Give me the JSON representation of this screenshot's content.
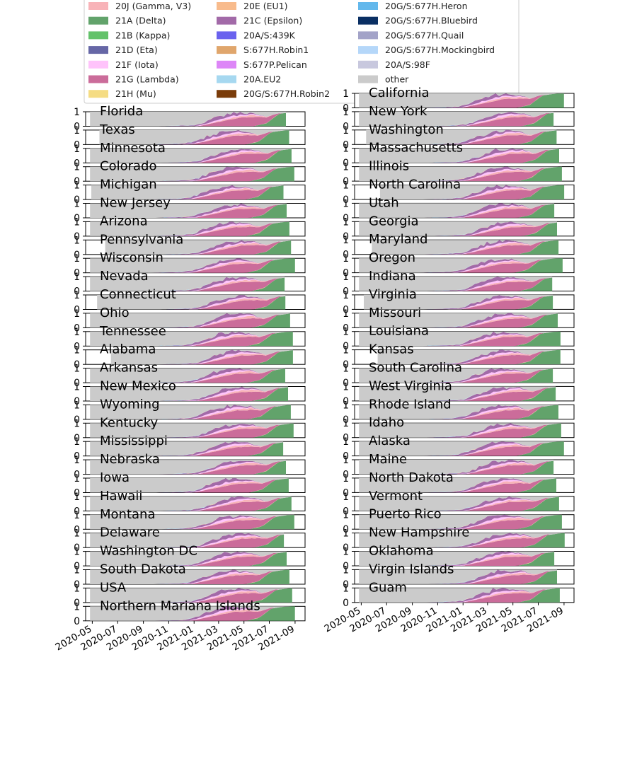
{
  "chart_data": {
    "type": "area",
    "stacked": true,
    "normalized": true,
    "ylim": [
      0,
      1
    ],
    "yticks": [
      "0",
      "1"
    ],
    "xlim": [
      "2020-04-15",
      "2021-09-25"
    ],
    "xticks": [
      "2020-05",
      "2020-07",
      "2020-09",
      "2020-11",
      "2021-01",
      "2021-03",
      "2021-05",
      "2021-07",
      "2021-09"
    ],
    "legend": {
      "placement": "top",
      "entries": [
        {
          "name": "20J (Gamma, V3)",
          "color": "#f8b3b8"
        },
        {
          "name": "21A (Delta)",
          "color": "#62a36b"
        },
        {
          "name": "21B (Kappa)",
          "color": "#63c26a"
        },
        {
          "name": "21D (Eta)",
          "color": "#6667a6"
        },
        {
          "name": "21F (Iota)",
          "color": "#ffc3fb"
        },
        {
          "name": "21G (Lambda)",
          "color": "#cb6c9a"
        },
        {
          "name": "21H (Mu)",
          "color": "#f5dc83"
        },
        {
          "name": "20E (EU1)",
          "color": "#f8bb8c"
        },
        {
          "name": "21C (Epsilon)",
          "color": "#a26aa8"
        },
        {
          "name": "20A/S:439K",
          "color": "#6a62ee"
        },
        {
          "name": "S:677H.Robin1",
          "color": "#e0a66c"
        },
        {
          "name": "S:677P.Pelican",
          "color": "#dd86f7"
        },
        {
          "name": "20A.EU2",
          "color": "#a6d8f0"
        },
        {
          "name": "20G/S:677H.Robin2",
          "color": "#7a3c0a"
        },
        {
          "name": "20G/S:677H.Heron",
          "color": "#63b8ec"
        },
        {
          "name": "20G/S:677H.Bluebird",
          "color": "#0a2f63"
        },
        {
          "name": "20G/S:677H.Quail",
          "color": "#a3a3c8"
        },
        {
          "name": "20G/S:677H.Mockingbird",
          "color": "#b5d7f9"
        },
        {
          "name": "20A/S:98F",
          "color": "#c8c8de"
        },
        {
          "name": "other",
          "color": "#cbcbcb"
        }
      ]
    },
    "left_panels": [
      "Florida",
      "Texas",
      "Minnesota",
      "Colorado",
      "Michigan",
      "New Jersey",
      "Arizona",
      "Pennsylvania",
      "Wisconsin",
      "Nevada",
      "Connecticut",
      "Ohio",
      "Tennessee",
      "Alabama",
      "Arkansas",
      "New Mexico",
      "Wyoming",
      "Kentucky",
      "Mississippi",
      "Nebraska",
      "Iowa",
      "Hawaii",
      "Montana",
      "Delaware",
      "Washington DC",
      "South Dakota",
      "USA",
      "Northern Mariana Islands"
    ],
    "right_panels": [
      "California",
      "New York",
      "Washington",
      "Massachusetts",
      "Illinois",
      "North Carolina",
      "Utah",
      "Georgia",
      "Maryland",
      "Oregon",
      "Indiana",
      "Virginia",
      "Missouri",
      "Louisiana",
      "Kansas",
      "South Carolina",
      "West Virginia",
      "Rhode Island",
      "Idaho",
      "Alaska",
      "Maine",
      "North Dakota",
      "Vermont",
      "Puerto Rico",
      "New Hampshire",
      "Oklahoma",
      "Virgin Islands",
      "Guam"
    ],
    "series_order": [
      "other",
      "20A.EU2",
      "20E (EU1)",
      "21C (Epsilon)",
      "21F (Iota)",
      "20J (Gamma, V3)",
      "21G (Lambda)",
      "21H (Mu)",
      "21A (Delta)"
    ],
    "series_profile": [
      {
        "name": "21C (Epsilon)",
        "x": [
          "2020-10-01",
          "2020-12-15",
          "2021-02-01",
          "2021-03-15",
          "2021-05-01",
          "2021-06-15"
        ],
        "y": [
          0,
          0.05,
          0.2,
          0.25,
          0.1,
          0
        ]
      },
      {
        "name": "21F (Iota)",
        "x": [
          "2020-11-15",
          "2021-01-15",
          "2021-03-15",
          "2021-05-01",
          "2021-06-15"
        ],
        "y": [
          0,
          0.05,
          0.15,
          0.1,
          0
        ]
      },
      {
        "name": "20J (Gamma, V3)",
        "x": [
          "2021-01-15",
          "2021-03-15",
          "2021-05-15",
          "2021-07-01"
        ],
        "y": [
          0,
          0.1,
          0.15,
          0
        ]
      },
      {
        "name": "21G (Lambda)",
        "x": [
          "2021-01-01",
          "2021-02-15",
          "2021-04-15",
          "2021-05-20",
          "2021-06-20",
          "2021-07-20"
        ],
        "y": [
          0,
          0.3,
          0.7,
          0.72,
          0.4,
          0
        ]
      },
      {
        "name": "21A (Delta)",
        "x": [
          "2021-05-15",
          "2021-06-15",
          "2021-07-15",
          "2021-08-15",
          "2021-09-10"
        ],
        "y": [
          0,
          0.2,
          0.85,
          0.98,
          1.0
        ]
      }
    ]
  }
}
